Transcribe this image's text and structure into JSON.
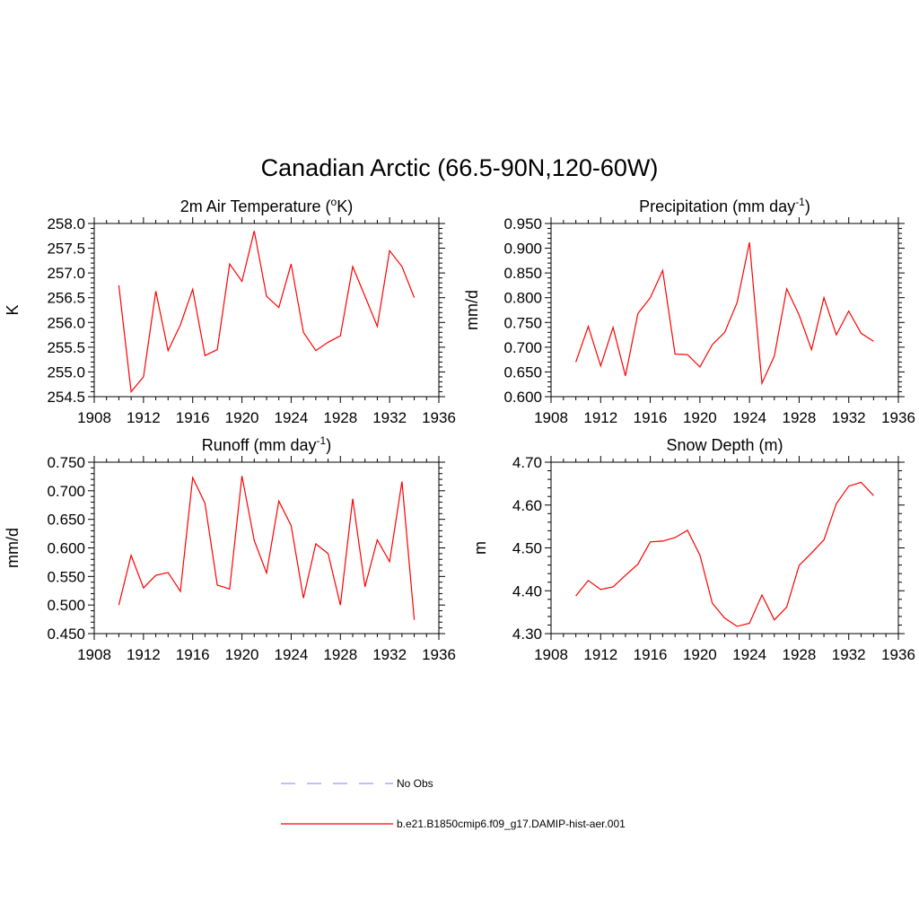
{
  "figure": {
    "title": "Canadian Arctic (66.5-90N,120-60W)"
  },
  "legend": [
    {
      "label": "No Obs",
      "color": "#9999ff",
      "style": "dashed"
    },
    {
      "label": "b.e21.B1850cmip6.f09_g17.DAMIP-hist-aer.001",
      "color": "#ff0000",
      "style": "solid"
    }
  ],
  "chart_data": [
    {
      "type": "line",
      "title": "2m Air Temperature (°K)",
      "title_parts": {
        "pre": "2m Air Temperature (",
        "sup": "o",
        "post": "K)"
      },
      "ylabel": "K",
      "xlim": [
        1908,
        1936
      ],
      "xticks": [
        1908,
        1912,
        1916,
        1920,
        1924,
        1928,
        1932,
        1936
      ],
      "ylim": [
        254.5,
        258.0
      ],
      "yticks": [
        "254.5",
        "255.0",
        "255.5",
        "256.0",
        "256.5",
        "257.0",
        "257.5",
        "258.0"
      ],
      "grid": false,
      "series": [
        {
          "color": "#ff0000",
          "x": [
            1910,
            1911,
            1912,
            1913,
            1914,
            1915,
            1916,
            1917,
            1918,
            1919,
            1920,
            1921,
            1922,
            1923,
            1924,
            1925,
            1926,
            1927,
            1928,
            1929,
            1930,
            1931,
            1932,
            1933,
            1934
          ],
          "y": [
            256.75,
            254.6,
            254.9,
            256.63,
            255.43,
            255.95,
            256.67,
            255.33,
            255.45,
            257.18,
            256.83,
            257.85,
            256.53,
            256.3,
            257.18,
            255.8,
            255.43,
            255.6,
            255.73,
            257.13,
            256.53,
            255.92,
            257.45,
            257.13,
            256.5
          ]
        }
      ]
    },
    {
      "type": "line",
      "title": "Precipitation (mm day-1)",
      "title_parts": {
        "pre": "Precipitation (mm day",
        "sup": "-1",
        "post": ")"
      },
      "ylabel": "mm/d",
      "xlim": [
        1908,
        1936
      ],
      "xticks": [
        1908,
        1912,
        1916,
        1920,
        1924,
        1928,
        1932,
        1936
      ],
      "ylim": [
        0.6,
        0.95
      ],
      "yticks": [
        "0.600",
        "0.650",
        "0.700",
        "0.750",
        "0.800",
        "0.850",
        "0.900",
        "0.950"
      ],
      "grid": false,
      "series": [
        {
          "color": "#ff0000",
          "x": [
            1910,
            1911,
            1912,
            1913,
            1914,
            1915,
            1916,
            1917,
            1918,
            1919,
            1920,
            1921,
            1922,
            1923,
            1924,
            1925,
            1926,
            1927,
            1928,
            1929,
            1930,
            1931,
            1932,
            1933,
            1934
          ],
          "y": [
            0.67,
            0.742,
            0.662,
            0.74,
            0.642,
            0.768,
            0.8,
            0.855,
            0.686,
            0.685,
            0.66,
            0.705,
            0.73,
            0.79,
            0.912,
            0.627,
            0.682,
            0.818,
            0.765,
            0.695,
            0.8,
            0.725,
            0.773,
            0.728,
            0.712
          ]
        }
      ]
    },
    {
      "type": "line",
      "title": "Runoff (mm day-1)",
      "title_parts": {
        "pre": "Runoff (mm day",
        "sup": "-1",
        "post": ")"
      },
      "ylabel": "mm/d",
      "xlim": [
        1908,
        1936
      ],
      "xticks": [
        1908,
        1912,
        1916,
        1920,
        1924,
        1928,
        1932,
        1936
      ],
      "ylim": [
        0.45,
        0.75
      ],
      "yticks": [
        "0.450",
        "0.500",
        "0.550",
        "0.600",
        "0.650",
        "0.700",
        "0.750"
      ],
      "grid": false,
      "series": [
        {
          "color": "#ff0000",
          "x": [
            1910,
            1911,
            1912,
            1913,
            1914,
            1915,
            1916,
            1917,
            1918,
            1919,
            1920,
            1921,
            1922,
            1923,
            1924,
            1925,
            1926,
            1927,
            1928,
            1929,
            1930,
            1931,
            1932,
            1933,
            1934
          ],
          "y": [
            0.5,
            0.587,
            0.53,
            0.552,
            0.557,
            0.524,
            0.723,
            0.678,
            0.535,
            0.528,
            0.726,
            0.613,
            0.556,
            0.682,
            0.639,
            0.512,
            0.607,
            0.59,
            0.5,
            0.686,
            0.532,
            0.614,
            0.576,
            0.716,
            0.474
          ]
        }
      ]
    },
    {
      "type": "line",
      "title": "Snow Depth (m)",
      "title_parts": {
        "pre": "Snow Depth (m)",
        "sup": "",
        "post": ""
      },
      "ylabel": "m",
      "xlim": [
        1908,
        1936
      ],
      "xticks": [
        1908,
        1912,
        1916,
        1920,
        1924,
        1928,
        1932,
        1936
      ],
      "ylim": [
        4.3,
        4.7
      ],
      "yticks": [
        "4.30",
        "4.40",
        "4.50",
        "4.60",
        "4.70"
      ],
      "grid": false,
      "series": [
        {
          "color": "#ff0000",
          "x": [
            1910,
            1911,
            1912,
            1913,
            1914,
            1915,
            1916,
            1917,
            1918,
            1919,
            1920,
            1921,
            1922,
            1923,
            1924,
            1925,
            1926,
            1927,
            1928,
            1929,
            1930,
            1931,
            1932,
            1933,
            1934
          ],
          "y": [
            4.388,
            4.424,
            4.403,
            4.409,
            4.436,
            4.462,
            4.514,
            4.516,
            4.524,
            4.541,
            4.483,
            4.371,
            4.336,
            4.317,
            4.324,
            4.39,
            4.332,
            4.362,
            4.459,
            4.488,
            4.519,
            4.603,
            4.644,
            4.653,
            4.622
          ]
        }
      ]
    }
  ]
}
